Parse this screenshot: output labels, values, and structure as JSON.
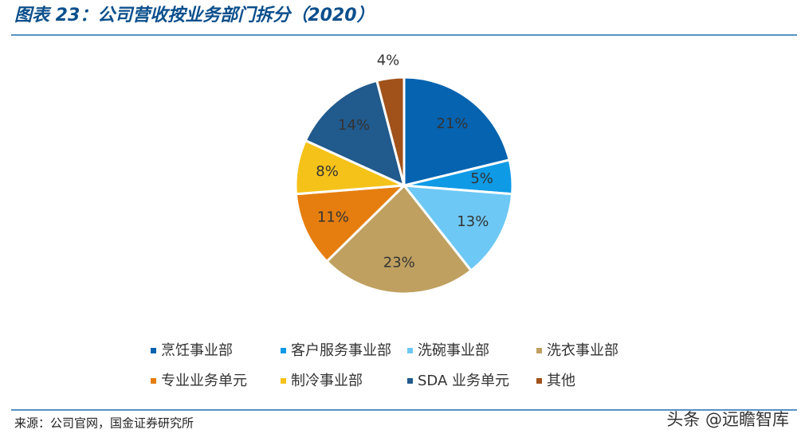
{
  "chart_data": {
    "type": "pie",
    "title": "图表 23：公司营收按业务部门拆分（2020）",
    "categories": [
      "烹饪事业部",
      "客户服务事业部",
      "洗碗事业部",
      "洗衣事业部",
      "专业业务单元",
      "制冷事业部",
      "SDA 业务单元",
      "其他"
    ],
    "values": [
      21,
      5,
      13,
      23,
      11,
      8,
      14,
      4
    ],
    "value_labels": [
      "21%",
      "5%",
      "13%",
      "23%",
      "11%",
      "8%",
      "14%",
      "4%"
    ],
    "colors": [
      "#0563b0",
      "#0f9ae6",
      "#6ec8f5",
      "#bfa060",
      "#e67e0f",
      "#f5c21a",
      "#215a8c",
      "#a0521a"
    ],
    "source": "来源：公司官网，国金证券研究所",
    "watermark": "头条 @远瞻智库"
  }
}
